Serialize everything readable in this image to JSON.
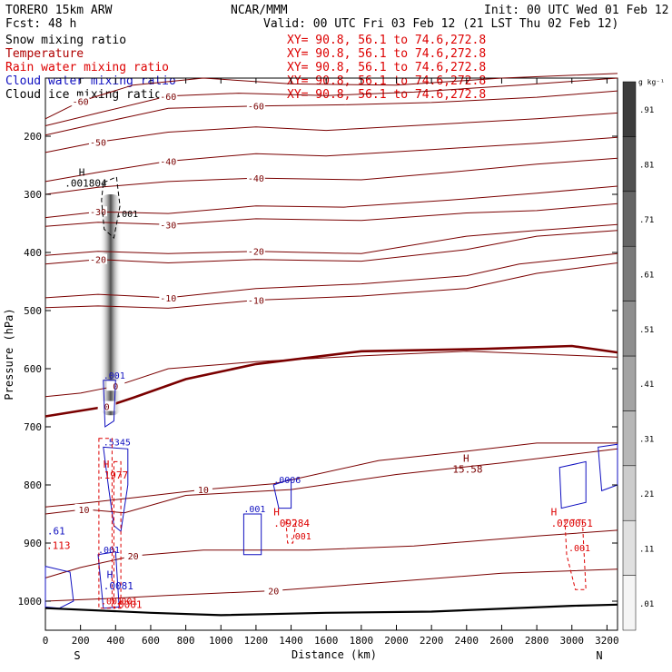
{
  "header": {
    "model": "TORERO   15km ARW",
    "forecast": "Fcst:   48 h",
    "center": "NCAR/MMM",
    "init": "Init: 00 UTC Wed 01 Feb 12",
    "valid": "Valid: 00 UTC Fri 03 Feb 12 (21 LST Thu 02 Feb 12)"
  },
  "fields": [
    {
      "label": "Snow mixing ratio",
      "coords": "XY=  90.8, 56.1 to  74.6,272.8",
      "color": "#000000"
    },
    {
      "label": "Temperature",
      "coords": "XY=  90.8, 56.1 to  74.6,272.8",
      "color": "#b00000"
    },
    {
      "label": "Rain water mixing ratio",
      "coords": "XY=  90.8, 56.1 to  74.6,272.8",
      "color": "#dd0000"
    },
    {
      "label": "Cloud water mixing ratio",
      "coords": "XY=  90.8, 56.1 to  74.6,272.8",
      "color": "#1010c0"
    },
    {
      "label": "Cloud ice mixing ratio",
      "coords": "XY=  90.8, 56.1 to  74.6,272.8",
      "color": "#000000"
    }
  ],
  "colors": {
    "temperature": "#7a0000",
    "rain": "#dd0000",
    "cloud_water": "#1010c0",
    "ice": "#000000",
    "shade_dark": "#3a3a3a"
  },
  "chart_data": {
    "type": "contour-cross-section",
    "xlabel": "Distance (km)",
    "ylabel": "Pressure (hPa)",
    "xlim": [
      0,
      3260
    ],
    "ylim": [
      1050,
      100
    ],
    "xticks": [
      0,
      200,
      400,
      600,
      800,
      1000,
      1200,
      1400,
      1600,
      1800,
      2000,
      2200,
      2400,
      2600,
      2800,
      3000,
      3200
    ],
    "yticks": [
      200,
      300,
      400,
      500,
      600,
      700,
      800,
      900,
      1000
    ],
    "x_end_labels": {
      "left": "S",
      "right": "N"
    },
    "colorbar": {
      "units": "g kg⁻¹",
      "labels": [
        ".01",
        ".11",
        ".21",
        ".31",
        ".41",
        ".51",
        ".61",
        ".71",
        ".81",
        ".91"
      ]
    },
    "temperature_contours": [
      {
        "level": -60,
        "label": "-60",
        "points": [
          [
            0,
            170
          ],
          [
            200,
            140
          ],
          [
            500,
            112
          ],
          [
            900,
            100
          ],
          [
            1400,
            110
          ],
          [
            2000,
            112
          ],
          [
            2600,
            100
          ],
          [
            3260,
            92
          ]
        ]
      },
      {
        "level": -60,
        "label": "-60",
        "points": [
          [
            0,
            182
          ],
          [
            300,
            160
          ],
          [
            700,
            131
          ],
          [
            1100,
            126
          ],
          [
            1600,
            130
          ],
          [
            2100,
            124
          ],
          [
            2700,
            112
          ],
          [
            3260,
            100
          ]
        ]
      },
      {
        "level": -60,
        "label": "-60",
        "points": [
          [
            0,
            198
          ],
          [
            300,
            178
          ],
          [
            700,
            152
          ],
          [
            1200,
            148
          ],
          [
            1700,
            146
          ],
          [
            2200,
            142
          ],
          [
            2800,
            133
          ],
          [
            3260,
            122
          ]
        ]
      },
      {
        "level": -50,
        "label": "-50",
        "points": [
          [
            0,
            228
          ],
          [
            300,
            210
          ],
          [
            700,
            193
          ],
          [
            1200,
            184
          ],
          [
            1600,
            190
          ],
          [
            2200,
            180
          ],
          [
            2800,
            170
          ],
          [
            3260,
            160
          ]
        ]
      },
      {
        "level": -40,
        "label": "-40",
        "points": [
          [
            0,
            278
          ],
          [
            300,
            262
          ],
          [
            700,
            243
          ],
          [
            1200,
            230
          ],
          [
            1600,
            234
          ],
          [
            2200,
            223
          ],
          [
            2800,
            212
          ],
          [
            3260,
            202
          ]
        ]
      },
      {
        "level": -40,
        "label": "-40",
        "points": [
          [
            0,
            300
          ],
          [
            300,
            288
          ],
          [
            700,
            278
          ],
          [
            1200,
            272
          ],
          [
            1800,
            275
          ],
          [
            2300,
            262
          ],
          [
            2800,
            248
          ],
          [
            3260,
            238
          ]
        ]
      },
      {
        "level": -30,
        "label": "-30",
        "points": [
          [
            0,
            340
          ],
          [
            300,
            330
          ],
          [
            700,
            333
          ],
          [
            1200,
            320
          ],
          [
            1700,
            322
          ],
          [
            2300,
            310
          ],
          [
            2800,
            298
          ],
          [
            3260,
            286
          ]
        ]
      },
      {
        "level": -30,
        "label": "-30",
        "points": [
          [
            0,
            355
          ],
          [
            300,
            348
          ],
          [
            700,
            352
          ],
          [
            1200,
            342
          ],
          [
            1800,
            345
          ],
          [
            2400,
            332
          ],
          [
            2800,
            328
          ],
          [
            3260,
            316
          ]
        ]
      },
      {
        "level": -20,
        "label": "-20",
        "points": [
          [
            0,
            405
          ],
          [
            300,
            398
          ],
          [
            700,
            402
          ],
          [
            1200,
            398
          ],
          [
            1800,
            402
          ],
          [
            2400,
            372
          ],
          [
            2800,
            362
          ],
          [
            3260,
            352
          ]
        ]
      },
      {
        "level": -20,
        "label": "-20",
        "points": [
          [
            0,
            420
          ],
          [
            300,
            412
          ],
          [
            700,
            418
          ],
          [
            1200,
            412
          ],
          [
            1800,
            415
          ],
          [
            2400,
            395
          ],
          [
            2800,
            372
          ],
          [
            3260,
            362
          ]
        ]
      },
      {
        "level": -10,
        "label": "-10",
        "points": [
          [
            0,
            478
          ],
          [
            300,
            472
          ],
          [
            700,
            478
          ],
          [
            1200,
            462
          ],
          [
            1800,
            454
          ],
          [
            2400,
            440
          ],
          [
            2700,
            420
          ],
          [
            3260,
            402
          ]
        ]
      },
      {
        "level": -10,
        "label": "-10",
        "points": [
          [
            0,
            495
          ],
          [
            300,
            492
          ],
          [
            700,
            496
          ],
          [
            1200,
            482
          ],
          [
            1800,
            475
          ],
          [
            2400,
            462
          ],
          [
            2800,
            436
          ],
          [
            3260,
            418
          ]
        ]
      },
      {
        "level": 0,
        "label": "0",
        "bold": true,
        "points": [
          [
            0,
            682
          ],
          [
            350,
            665
          ],
          [
            500,
            650
          ],
          [
            800,
            618
          ],
          [
            1200,
            592
          ],
          [
            1800,
            570
          ],
          [
            2500,
            566
          ],
          [
            3000,
            561
          ],
          [
            3260,
            572
          ]
        ]
      },
      {
        "level": 0,
        "label": "0",
        "points": [
          [
            0,
            648
          ],
          [
            200,
            642
          ],
          [
            400,
            630
          ],
          [
            700,
            600
          ],
          [
            1200,
            588
          ],
          [
            1800,
            578
          ],
          [
            2400,
            570
          ],
          [
            3260,
            580
          ]
        ]
      },
      {
        "level": 10,
        "label": "10",
        "points": [
          [
            0,
            838
          ],
          [
            200,
            832
          ],
          [
            500,
            822
          ],
          [
            900,
            808
          ],
          [
            1300,
            798
          ],
          [
            1900,
            758
          ],
          [
            2400,
            742
          ],
          [
            2800,
            728
          ],
          [
            3260,
            728
          ]
        ]
      },
      {
        "level": 10,
        "label": "10",
        "points": [
          [
            0,
            850
          ],
          [
            220,
            842
          ],
          [
            450,
            848
          ],
          [
            800,
            818
          ],
          [
            1400,
            808
          ],
          [
            2000,
            782
          ],
          [
            2600,
            762
          ],
          [
            3260,
            738
          ]
        ]
      },
      {
        "level": 20,
        "label": "20",
        "points": [
          [
            0,
            960
          ],
          [
            200,
            942
          ],
          [
            500,
            922
          ],
          [
            900,
            912
          ],
          [
            1500,
            912
          ],
          [
            2100,
            905
          ],
          [
            2800,
            888
          ],
          [
            3260,
            878
          ]
        ]
      },
      {
        "level": 20,
        "label": "20",
        "points": [
          [
            0,
            1000
          ],
          [
            400,
            995
          ],
          [
            700,
            990
          ],
          [
            1300,
            982
          ],
          [
            2000,
            966
          ],
          [
            2600,
            952
          ],
          [
            3260,
            945
          ]
        ]
      }
    ],
    "surface_pressure": {
      "points": [
        [
          0,
          1012
        ],
        [
          600,
          1020
        ],
        [
          1000,
          1024
        ],
        [
          1600,
          1020
        ],
        [
          2200,
          1018
        ],
        [
          3000,
          1008
        ],
        [
          3260,
          1006
        ]
      ]
    },
    "snow_column": {
      "x": 372,
      "p_top": 300,
      "p_bottom": 680,
      "max_value": 0.91
    },
    "ice_contours": [
      {
        "label": ".001",
        "points": [
          [
            330,
            280
          ],
          [
            405,
            270
          ],
          [
            425,
            320
          ],
          [
            390,
            375
          ],
          [
            335,
            360
          ],
          [
            320,
            310
          ]
        ]
      }
    ],
    "cloud_water_contours": [
      {
        "label": ".001",
        "points": [
          [
            330,
            620
          ],
          [
            400,
            620
          ],
          [
            390,
            690
          ],
          [
            340,
            700
          ]
        ]
      },
      {
        "label": ".5345",
        "points": [
          [
            330,
            735
          ],
          [
            470,
            738
          ],
          [
            470,
            800
          ],
          [
            430,
            880
          ],
          [
            390,
            870
          ],
          [
            360,
            805
          ]
        ]
      },
      {
        "label": ".001",
        "points": [
          [
            1130,
            850
          ],
          [
            1230,
            850
          ],
          [
            1230,
            920
          ],
          [
            1130,
            920
          ]
        ]
      },
      {
        "label": ".0006",
        "points": [
          [
            1300,
            800
          ],
          [
            1400,
            790
          ],
          [
            1400,
            840
          ],
          [
            1330,
            840
          ]
        ]
      },
      {
        "label": ".001",
        "points": [
          [
            300,
            920
          ],
          [
            400,
            915
          ],
          [
            420,
            1010
          ],
          [
            330,
            1012
          ]
        ]
      },
      {
        "label": "",
        "points": [
          [
            0,
            940
          ],
          [
            140,
            950
          ],
          [
            160,
            1000
          ],
          [
            80,
            1012
          ],
          [
            0,
            1010
          ]
        ]
      },
      {
        "label": "",
        "points": [
          [
            2930,
            770
          ],
          [
            3080,
            760
          ],
          [
            3080,
            830
          ],
          [
            2940,
            840
          ]
        ]
      },
      {
        "label": "",
        "points": [
          [
            3150,
            735
          ],
          [
            3260,
            730
          ],
          [
            3260,
            800
          ],
          [
            3170,
            810
          ]
        ]
      }
    ],
    "rain_contours": [
      {
        "label": ".001",
        "points": [
          [
            305,
            720
          ],
          [
            380,
            720
          ],
          [
            380,
            1012
          ],
          [
            305,
            1012
          ]
        ]
      },
      {
        "label": ".001",
        "points": [
          [
            390,
            760
          ],
          [
            430,
            760
          ],
          [
            430,
            1012
          ],
          [
            390,
            1012
          ]
        ]
      },
      {
        "label": ".001",
        "points": [
          [
            1370,
            860
          ],
          [
            1430,
            860
          ],
          [
            1410,
            900
          ],
          [
            1380,
            900
          ]
        ]
      },
      {
        "label": ".001",
        "points": [
          [
            2960,
            860
          ],
          [
            3060,
            860
          ],
          [
            3080,
            980
          ],
          [
            3020,
            980
          ],
          [
            2970,
            920
          ]
        ]
      }
    ],
    "annotations": [
      {
        "text": "H",
        "x": 190,
        "p": 268,
        "color": "black"
      },
      {
        "text": ".001804",
        "x": 110,
        "p": 287,
        "color": "black"
      },
      {
        "text": "H",
        "x": 2380,
        "p": 760,
        "color": "#7a0000"
      },
      {
        "text": "15.58",
        "x": 2320,
        "p": 779,
        "color": "#7a0000"
      },
      {
        "text": "H",
        "x": 330,
        "p": 770,
        "color": "#dd0000"
      },
      {
        "text": ".1977",
        "x": 300,
        "p": 789,
        "color": "#dd0000"
      },
      {
        "text": "H",
        "x": 1300,
        "p": 852,
        "color": "#dd0000"
      },
      {
        "text": ".09284",
        "x": 1300,
        "p": 872,
        "color": "#dd0000"
      },
      {
        "text": "H",
        "x": 2880,
        "p": 852,
        "color": "#dd0000"
      },
      {
        "text": ".020051",
        "x": 2880,
        "p": 872,
        "color": "#dd0000"
      },
      {
        "text": "H",
        "x": 350,
        "p": 960,
        "color": "#1010c0"
      },
      {
        "text": ".0081",
        "x": 330,
        "p": 980,
        "color": "#1010c0"
      },
      {
        "text": ".0001",
        "x": 380,
        "p": 1012,
        "color": "#dd0000"
      },
      {
        "text": ".61",
        "x": 10,
        "p": 885,
        "color": "#1010c0"
      },
      {
        "text": ".113",
        "x": 5,
        "p": 910,
        "color": "#dd0000"
      }
    ]
  }
}
